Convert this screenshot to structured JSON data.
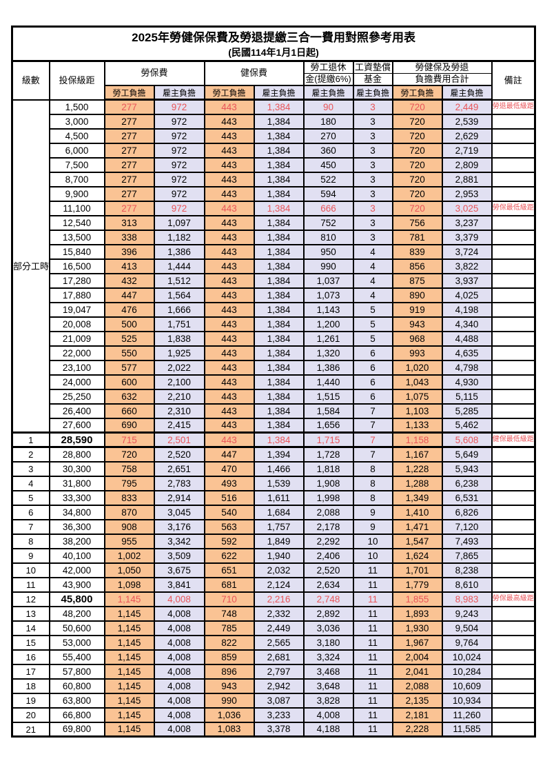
{
  "title": "2025年勞健保保費及勞退提繳三合一費用對照參考用表",
  "subtitle": "(民國114年1月1日起)",
  "colors": {
    "employee_fill": "#FAC394",
    "employer_fill": "#E1E0F2",
    "highlight_red": "#E95559",
    "border": "#000000"
  },
  "header": {
    "level": "級數",
    "bracket": "投保級距",
    "labor_insurance": "勞保費",
    "health_insurance": "健保費",
    "pension_line1": "勞工退休",
    "pension_line2": "金(提繳6%)",
    "wage_fund_line1": "工資墊償",
    "wage_fund_line2": "基金",
    "total_line1": "勞健保及勞退",
    "total_line2": "負擔費用合計",
    "note": "備註",
    "employee": "勞工負擔",
    "employer": "雇主負擔"
  },
  "table": {
    "rows": [
      {
        "level": "部分工時",
        "level_rowspan": 23,
        "bracket": "1,500",
        "li_emp": "277",
        "li_er": "972",
        "hi_emp": "443",
        "hi_er": "1,384",
        "pen": "90",
        "wf": "3",
        "tot_emp": "720",
        "tot_er": "2,449",
        "note": "勞退最低級距",
        "red": true
      },
      {
        "bracket": "3,000",
        "li_emp": "277",
        "li_er": "972",
        "hi_emp": "443",
        "hi_er": "1,384",
        "pen": "180",
        "wf": "3",
        "tot_emp": "720",
        "tot_er": "2,539"
      },
      {
        "bracket": "4,500",
        "li_emp": "277",
        "li_er": "972",
        "hi_emp": "443",
        "hi_er": "1,384",
        "pen": "270",
        "wf": "3",
        "tot_emp": "720",
        "tot_er": "2,629"
      },
      {
        "bracket": "6,000",
        "li_emp": "277",
        "li_er": "972",
        "hi_emp": "443",
        "hi_er": "1,384",
        "pen": "360",
        "wf": "3",
        "tot_emp": "720",
        "tot_er": "2,719"
      },
      {
        "bracket": "7,500",
        "li_emp": "277",
        "li_er": "972",
        "hi_emp": "443",
        "hi_er": "1,384",
        "pen": "450",
        "wf": "3",
        "tot_emp": "720",
        "tot_er": "2,809"
      },
      {
        "bracket": "8,700",
        "li_emp": "277",
        "li_er": "972",
        "hi_emp": "443",
        "hi_er": "1,384",
        "pen": "522",
        "wf": "3",
        "tot_emp": "720",
        "tot_er": "2,881"
      },
      {
        "bracket": "9,900",
        "li_emp": "277",
        "li_er": "972",
        "hi_emp": "443",
        "hi_er": "1,384",
        "pen": "594",
        "wf": "3",
        "tot_emp": "720",
        "tot_er": "2,953"
      },
      {
        "bracket": "11,100",
        "li_emp": "277",
        "li_er": "972",
        "hi_emp": "443",
        "hi_er": "1,384",
        "pen": "666",
        "wf": "3",
        "tot_emp": "720",
        "tot_er": "3,025",
        "note": "勞保最低級距",
        "red": true
      },
      {
        "bracket": "12,540",
        "li_emp": "313",
        "li_er": "1,097",
        "hi_emp": "443",
        "hi_er": "1,384",
        "pen": "752",
        "wf": "3",
        "tot_emp": "756",
        "tot_er": "3,237"
      },
      {
        "bracket": "13,500",
        "li_emp": "338",
        "li_er": "1,182",
        "hi_emp": "443",
        "hi_er": "1,384",
        "pen": "810",
        "wf": "3",
        "tot_emp": "781",
        "tot_er": "3,379"
      },
      {
        "bracket": "15,840",
        "li_emp": "396",
        "li_er": "1,386",
        "hi_emp": "443",
        "hi_er": "1,384",
        "pen": "950",
        "wf": "4",
        "tot_emp": "839",
        "tot_er": "3,724"
      },
      {
        "bracket": "16,500",
        "li_emp": "413",
        "li_er": "1,444",
        "hi_emp": "443",
        "hi_er": "1,384",
        "pen": "990",
        "wf": "4",
        "tot_emp": "856",
        "tot_er": "3,822"
      },
      {
        "bracket": "17,280",
        "li_emp": "432",
        "li_er": "1,512",
        "hi_emp": "443",
        "hi_er": "1,384",
        "pen": "1,037",
        "wf": "4",
        "tot_emp": "875",
        "tot_er": "3,937"
      },
      {
        "bracket": "17,880",
        "li_emp": "447",
        "li_er": "1,564",
        "hi_emp": "443",
        "hi_er": "1,384",
        "pen": "1,073",
        "wf": "4",
        "tot_emp": "890",
        "tot_er": "4,025"
      },
      {
        "bracket": "19,047",
        "li_emp": "476",
        "li_er": "1,666",
        "hi_emp": "443",
        "hi_er": "1,384",
        "pen": "1,143",
        "wf": "5",
        "tot_emp": "919",
        "tot_er": "4,198"
      },
      {
        "bracket": "20,008",
        "li_emp": "500",
        "li_er": "1,751",
        "hi_emp": "443",
        "hi_er": "1,384",
        "pen": "1,200",
        "wf": "5",
        "tot_emp": "943",
        "tot_er": "4,340"
      },
      {
        "bracket": "21,009",
        "li_emp": "525",
        "li_er": "1,838",
        "hi_emp": "443",
        "hi_er": "1,384",
        "pen": "1,261",
        "wf": "5",
        "tot_emp": "968",
        "tot_er": "4,488"
      },
      {
        "bracket": "22,000",
        "li_emp": "550",
        "li_er": "1,925",
        "hi_emp": "443",
        "hi_er": "1,384",
        "pen": "1,320",
        "wf": "6",
        "tot_emp": "993",
        "tot_er": "4,635"
      },
      {
        "bracket": "23,100",
        "li_emp": "577",
        "li_er": "2,022",
        "hi_emp": "443",
        "hi_er": "1,384",
        "pen": "1,386",
        "wf": "6",
        "tot_emp": "1,020",
        "tot_er": "4,798"
      },
      {
        "bracket": "24,000",
        "li_emp": "600",
        "li_er": "2,100",
        "hi_emp": "443",
        "hi_er": "1,384",
        "pen": "1,440",
        "wf": "6",
        "tot_emp": "1,043",
        "tot_er": "4,930"
      },
      {
        "bracket": "25,250",
        "li_emp": "632",
        "li_er": "2,210",
        "hi_emp": "443",
        "hi_er": "1,384",
        "pen": "1,515",
        "wf": "6",
        "tot_emp": "1,075",
        "tot_er": "5,115"
      },
      {
        "bracket": "26,400",
        "li_emp": "660",
        "li_er": "2,310",
        "hi_emp": "443",
        "hi_er": "1,384",
        "pen": "1,584",
        "wf": "7",
        "tot_emp": "1,103",
        "tot_er": "5,285"
      },
      {
        "bracket": "27,600",
        "li_emp": "690",
        "li_er": "2,415",
        "hi_emp": "443",
        "hi_er": "1,384",
        "pen": "1,656",
        "wf": "7",
        "tot_emp": "1,133",
        "tot_er": "5,462"
      },
      {
        "level": "1",
        "bracket": "28,590",
        "li_emp": "715",
        "li_er": "2,501",
        "hi_emp": "443",
        "hi_er": "1,384",
        "pen": "1,715",
        "wf": "7",
        "tot_emp": "1,158",
        "tot_er": "5,608",
        "note": "健保最低級距",
        "red": true,
        "bold_bracket": true,
        "thick": true
      },
      {
        "level": "2",
        "bracket": "28,800",
        "li_emp": "720",
        "li_er": "2,520",
        "hi_emp": "447",
        "hi_er": "1,394",
        "pen": "1,728",
        "wf": "7",
        "tot_emp": "1,167",
        "tot_er": "5,649"
      },
      {
        "level": "3",
        "bracket": "30,300",
        "li_emp": "758",
        "li_er": "2,651",
        "hi_emp": "470",
        "hi_er": "1,466",
        "pen": "1,818",
        "wf": "8",
        "tot_emp": "1,228",
        "tot_er": "5,943"
      },
      {
        "level": "4",
        "bracket": "31,800",
        "li_emp": "795",
        "li_er": "2,783",
        "hi_emp": "493",
        "hi_er": "1,539",
        "pen": "1,908",
        "wf": "8",
        "tot_emp": "1,288",
        "tot_er": "6,238"
      },
      {
        "level": "5",
        "bracket": "33,300",
        "li_emp": "833",
        "li_er": "2,914",
        "hi_emp": "516",
        "hi_er": "1,611",
        "pen": "1,998",
        "wf": "8",
        "tot_emp": "1,349",
        "tot_er": "6,531"
      },
      {
        "level": "6",
        "bracket": "34,800",
        "li_emp": "870",
        "li_er": "3,045",
        "hi_emp": "540",
        "hi_er": "1,684",
        "pen": "2,088",
        "wf": "9",
        "tot_emp": "1,410",
        "tot_er": "6,826"
      },
      {
        "level": "7",
        "bracket": "36,300",
        "li_emp": "908",
        "li_er": "3,176",
        "hi_emp": "563",
        "hi_er": "1,757",
        "pen": "2,178",
        "wf": "9",
        "tot_emp": "1,471",
        "tot_er": "7,120"
      },
      {
        "level": "8",
        "bracket": "38,200",
        "li_emp": "955",
        "li_er": "3,342",
        "hi_emp": "592",
        "hi_er": "1,849",
        "pen": "2,292",
        "wf": "10",
        "tot_emp": "1,547",
        "tot_er": "7,493"
      },
      {
        "level": "9",
        "bracket": "40,100",
        "li_emp": "1,002",
        "li_er": "3,509",
        "hi_emp": "622",
        "hi_er": "1,940",
        "pen": "2,406",
        "wf": "10",
        "tot_emp": "1,624",
        "tot_er": "7,865"
      },
      {
        "level": "10",
        "bracket": "42,000",
        "li_emp": "1,050",
        "li_er": "3,675",
        "hi_emp": "651",
        "hi_er": "2,032",
        "pen": "2,520",
        "wf": "11",
        "tot_emp": "1,701",
        "tot_er": "8,238"
      },
      {
        "level": "11",
        "bracket": "43,900",
        "li_emp": "1,098",
        "li_er": "3,841",
        "hi_emp": "681",
        "hi_er": "2,124",
        "pen": "2,634",
        "wf": "11",
        "tot_emp": "1,779",
        "tot_er": "8,610"
      },
      {
        "level": "12",
        "bracket": "45,800",
        "li_emp": "1,145",
        "li_er": "4,008",
        "hi_emp": "710",
        "hi_er": "2,216",
        "pen": "2,748",
        "wf": "11",
        "tot_emp": "1,855",
        "tot_er": "8,983",
        "note": "勞保最高級距",
        "red": true,
        "bold_bracket": true
      },
      {
        "level": "13",
        "bracket": "48,200",
        "li_emp": "1,145",
        "li_er": "4,008",
        "hi_emp": "748",
        "hi_er": "2,332",
        "pen": "2,892",
        "wf": "11",
        "tot_emp": "1,893",
        "tot_er": "9,243"
      },
      {
        "level": "14",
        "bracket": "50,600",
        "li_emp": "1,145",
        "li_er": "4,008",
        "hi_emp": "785",
        "hi_er": "2,449",
        "pen": "3,036",
        "wf": "11",
        "tot_emp": "1,930",
        "tot_er": "9,504"
      },
      {
        "level": "15",
        "bracket": "53,000",
        "li_emp": "1,145",
        "li_er": "4,008",
        "hi_emp": "822",
        "hi_er": "2,565",
        "pen": "3,180",
        "wf": "11",
        "tot_emp": "1,967",
        "tot_er": "9,764"
      },
      {
        "level": "16",
        "bracket": "55,400",
        "li_emp": "1,145",
        "li_er": "4,008",
        "hi_emp": "859",
        "hi_er": "2,681",
        "pen": "3,324",
        "wf": "11",
        "tot_emp": "2,004",
        "tot_er": "10,024"
      },
      {
        "level": "17",
        "bracket": "57,800",
        "li_emp": "1,145",
        "li_er": "4,008",
        "hi_emp": "896",
        "hi_er": "2,797",
        "pen": "3,468",
        "wf": "11",
        "tot_emp": "2,041",
        "tot_er": "10,284"
      },
      {
        "level": "18",
        "bracket": "60,800",
        "li_emp": "1,145",
        "li_er": "4,008",
        "hi_emp": "943",
        "hi_er": "2,942",
        "pen": "3,648",
        "wf": "11",
        "tot_emp": "2,088",
        "tot_er": "10,609"
      },
      {
        "level": "19",
        "bracket": "63,800",
        "li_emp": "1,145",
        "li_er": "4,008",
        "hi_emp": "990",
        "hi_er": "3,087",
        "pen": "3,828",
        "wf": "11",
        "tot_emp": "2,135",
        "tot_er": "10,934"
      },
      {
        "level": "20",
        "bracket": "66,800",
        "li_emp": "1,145",
        "li_er": "4,008",
        "hi_emp": "1,036",
        "hi_er": "3,233",
        "pen": "4,008",
        "wf": "11",
        "tot_emp": "2,181",
        "tot_er": "11,260"
      },
      {
        "level": "21",
        "bracket": "69,800",
        "li_emp": "1,145",
        "li_er": "4,008",
        "hi_emp": "1,083",
        "hi_er": "3,378",
        "pen": "4,188",
        "wf": "11",
        "tot_emp": "2,228",
        "tot_er": "11,585"
      }
    ]
  }
}
